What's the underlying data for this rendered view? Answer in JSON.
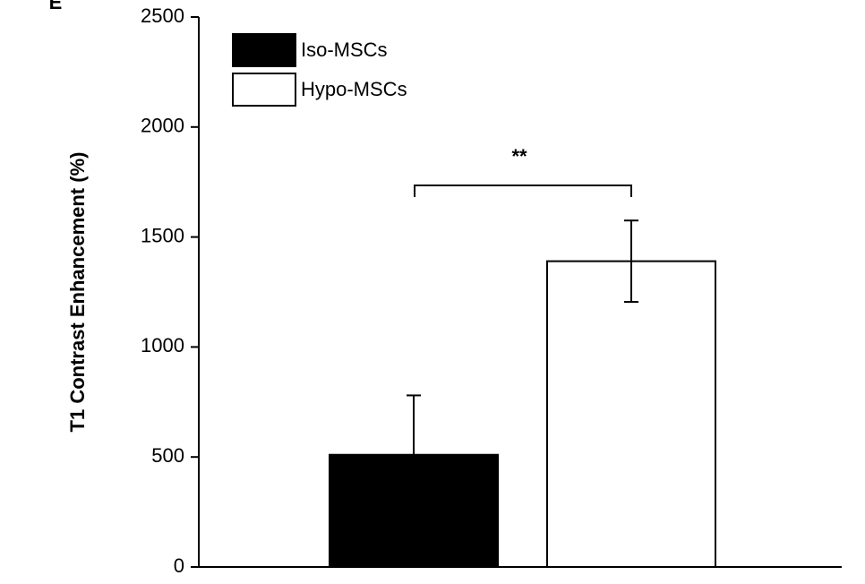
{
  "chart_data": {
    "type": "bar",
    "panel_label": "E",
    "y_label": "T1 Contrast Enhancement (%)",
    "categories": [
      null
    ],
    "series": [
      {
        "name": "Iso-MSCs",
        "color": "#000000",
        "values": [
          510
        ],
        "errors": [
          270
        ]
      },
      {
        "name": "Hypo-MSCs",
        "color": "#ffffff",
        "values": [
          1390
        ],
        "errors": [
          185
        ]
      }
    ],
    "annotation": "**",
    "ylim": [
      0,
      2500
    ],
    "yticks": [
      0,
      500,
      1000,
      1500,
      2000,
      2500
    ],
    "grid": false
  }
}
